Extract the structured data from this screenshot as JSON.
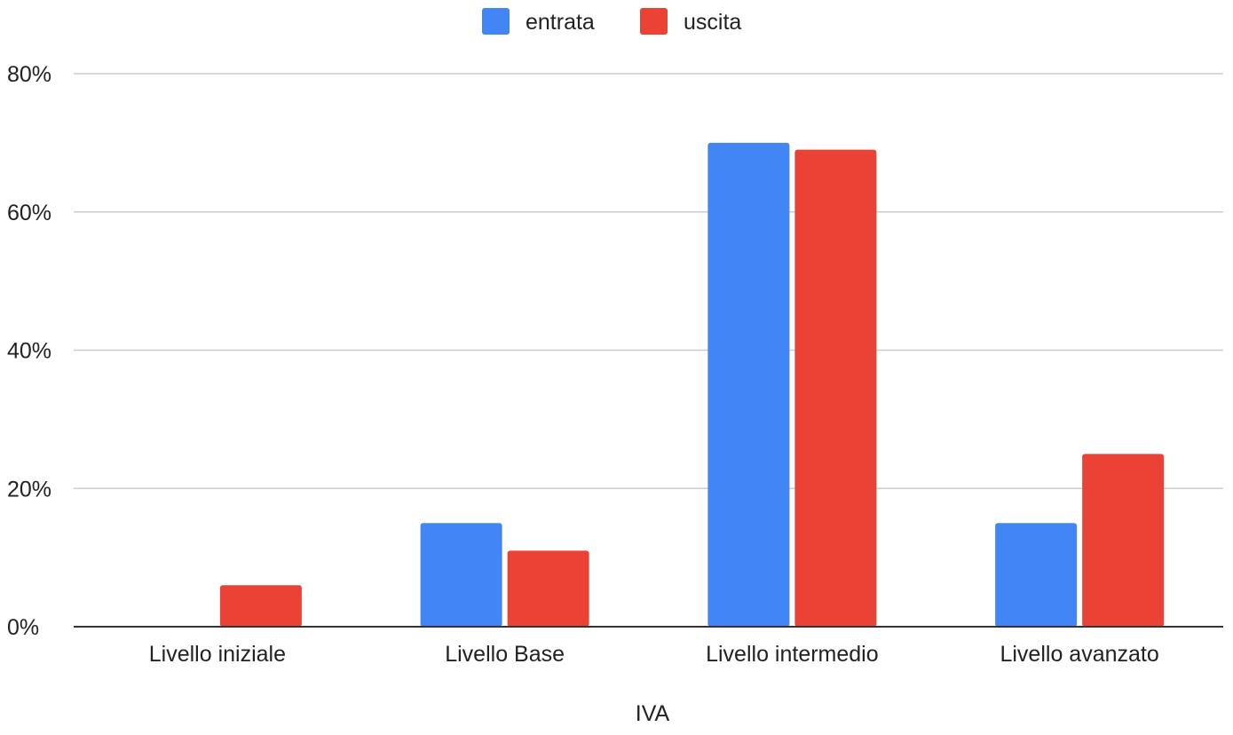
{
  "chart_data": {
    "type": "bar",
    "title": "",
    "xlabel": "IVA",
    "ylabel": "",
    "categories": [
      "Livello iniziale",
      "Livello Base",
      "Livello intermedio",
      "Livello avanzato"
    ],
    "series": [
      {
        "name": "entrata",
        "color": "#4285f4",
        "values": [
          0,
          15,
          70,
          15
        ]
      },
      {
        "name": "uscita",
        "color": "#ea4335",
        "values": [
          6,
          11,
          69,
          25
        ]
      }
    ],
    "ylim": [
      0,
      80
    ],
    "yticks": [
      0,
      20,
      40,
      60,
      80
    ],
    "ytick_labels": [
      "0%",
      "20%",
      "40%",
      "60%",
      "80%"
    ],
    "grid": true,
    "legend": "top-center",
    "colors": {
      "gridline": "#cccccc",
      "axis": "#333333",
      "text": "#222222"
    }
  }
}
